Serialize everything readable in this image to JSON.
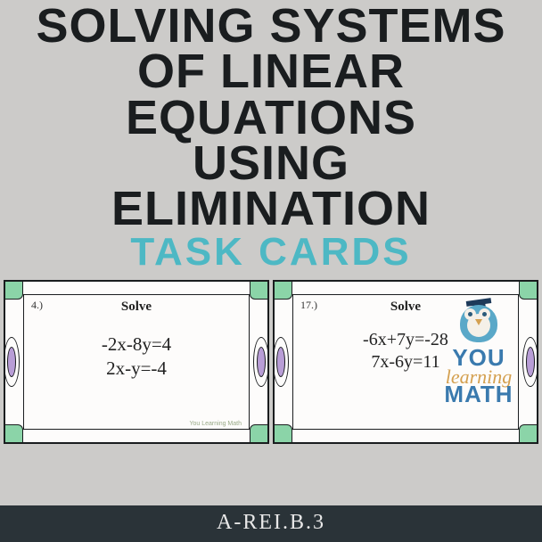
{
  "colors": {
    "page_bg": "#cccbc9",
    "title_text": "#1a1d1f",
    "subtitle_text": "#4db8c4",
    "card_bg": "#fdfcfb",
    "card_border": "#1a1d1f",
    "corner_fill": "#8bd4a8",
    "oval_fill": "#b89dd6",
    "footer_bg": "#2a3338",
    "footer_text": "#e8e8e8",
    "logo_primary": "#3a7aae",
    "logo_accent": "#d4a050",
    "owl_body": "#5aa8c8"
  },
  "typography": {
    "title_fontsize": 54,
    "title_weight": 900,
    "subtitle_fontsize": 44,
    "card_label_fontsize": 15,
    "equation_fontsize": 21,
    "footer_fontsize": 24
  },
  "title": {
    "line1": "SOLVING SYSTEMS",
    "line2": "OF LINEAR",
    "line3": "EQUATIONS",
    "line4": "USING",
    "line5": "ELIMINATION"
  },
  "subtitle": "TASK CARDS",
  "cards": [
    {
      "number": "4.)",
      "label": "Solve",
      "eq1": "-2x-8y=4",
      "eq2": "2x-y=-4",
      "watermark": "You Learning Math"
    },
    {
      "number": "17.)",
      "label": "Solve",
      "eq1": "-6x+7y=-28",
      "eq2": "7x-6y=11",
      "watermark": ""
    }
  ],
  "logo": {
    "line1": "YOU",
    "line2": "learning",
    "line3": "MATH"
  },
  "footer": "A-REI.B.3"
}
